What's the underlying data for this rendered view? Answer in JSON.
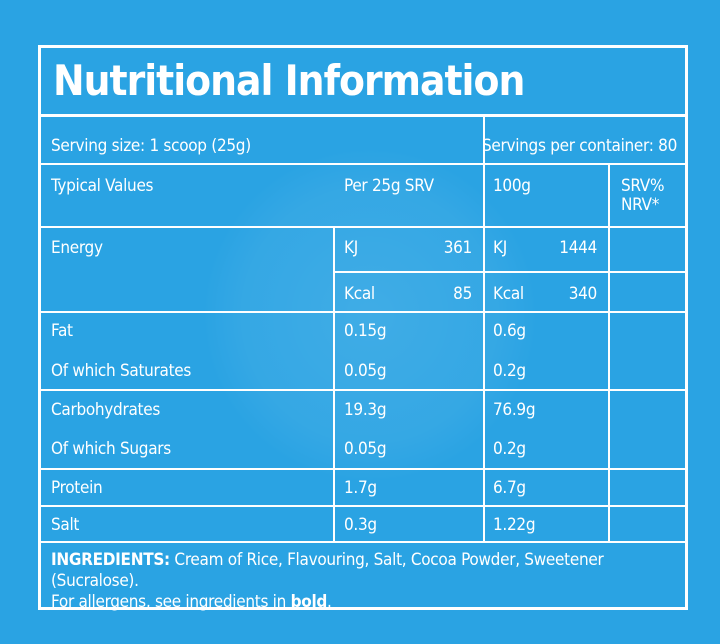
{
  "title": "Nutritional Information",
  "serving_size": "Serving size: 1 scoop (25g)",
  "servings_per_container": "Servings per container: 80",
  "headers": {
    "typical": "Typical Values",
    "per_serving": "Per 25g SRV",
    "per_100g": "100g",
    "nrv_line1": "SRV%",
    "nrv_line2": "NRV*"
  },
  "energy": {
    "label": "Energy",
    "kj_unit": "KJ",
    "kj_srv": "361",
    "kj_100": "1444",
    "kcal_unit": "Kcal",
    "kcal_srv": "85",
    "kcal_100": "340"
  },
  "nutrients": [
    {
      "label": "Fat",
      "srv": "0.15g",
      "g100": "0.6g"
    },
    {
      "label": "Of which Saturates",
      "srv": "0.05g",
      "g100": "0.2g"
    },
    {
      "label": "Carbohydrates",
      "srv": "19.3g",
      "g100": "76.9g"
    },
    {
      "label": "Of which Sugars",
      "srv": "0.05g",
      "g100": "0.2g"
    },
    {
      "label": "Protein",
      "srv": "1.7g",
      "g100": "6.7g"
    },
    {
      "label": "Salt",
      "srv": "0.3g",
      "g100": "1.22g"
    }
  ],
  "ingredients": {
    "heading": "INGREDIENTS:",
    "text": " Cream of Rice, Flavouring, Salt, Cocoa Powder, Sweetener (Sucralose).",
    "allergen_prefix": "For allergens, see ingredients in ",
    "allergen_bold": "bold",
    "allergen_suffix": "."
  }
}
